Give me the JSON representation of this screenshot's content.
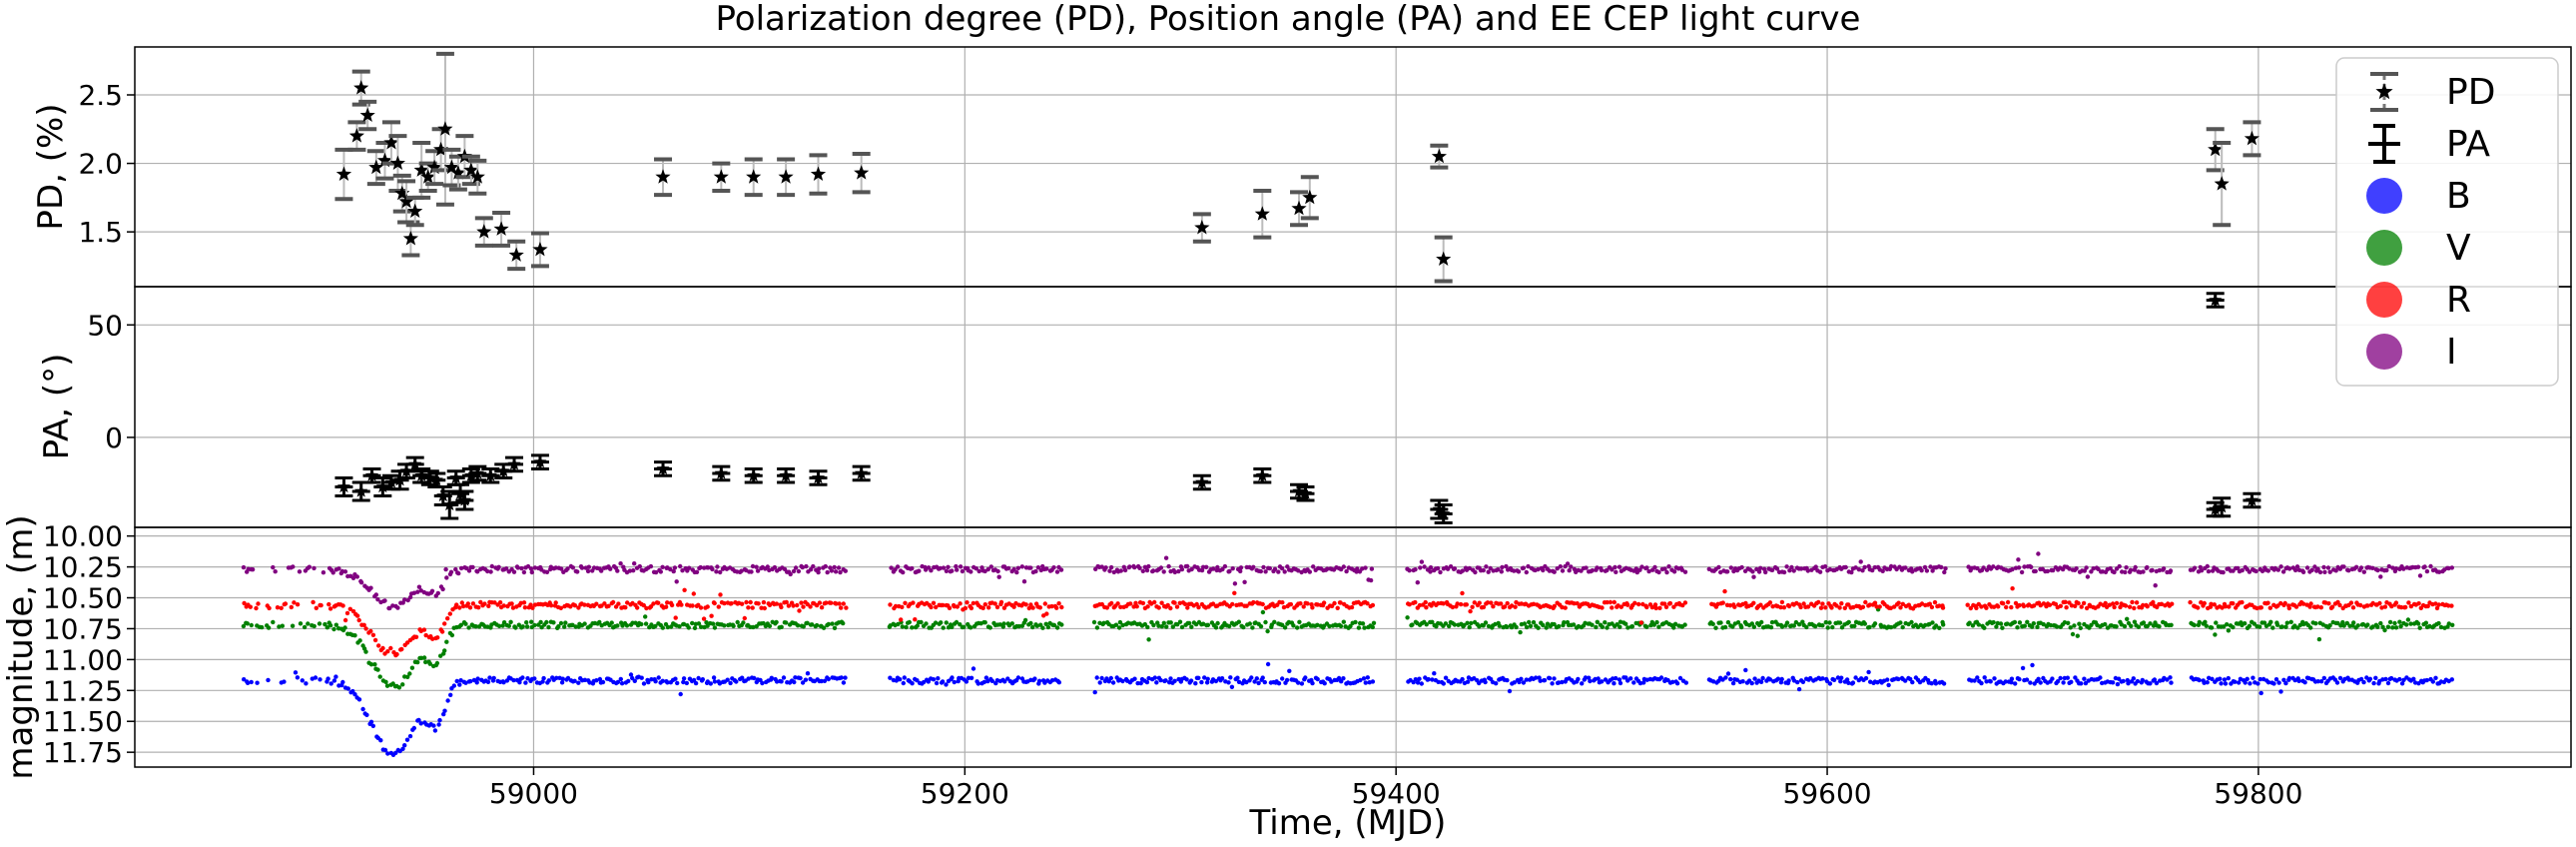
{
  "chart_data": {
    "type": "scatter",
    "title": "Polarization degree (PD), Position angle (PA) and EE CEP light curve",
    "xlabel": "Time, (MJD)",
    "xlim": [
      58815,
      59945
    ],
    "x_ticks": [
      "59000",
      "59200",
      "59400",
      "59600",
      "59800"
    ],
    "grid": true,
    "legend": {
      "placement": "top-right",
      "entries": [
        {
          "label": "PD",
          "marker": "star-errorbar-dashed",
          "color": "#555555"
        },
        {
          "label": "PA",
          "marker": "errorbar-solid",
          "color": "#000000"
        },
        {
          "label": "B",
          "marker": "circle",
          "color": "#0000ff"
        },
        {
          "label": "V",
          "marker": "circle",
          "color": "#008000"
        },
        {
          "label": "R",
          "marker": "circle",
          "color": "#ff0000"
        },
        {
          "label": "I",
          "marker": "circle",
          "color": "#800080"
        }
      ]
    },
    "panels": {
      "pd": {
        "ylabel": "PD, (%)",
        "ylim": [
          1.1,
          2.85
        ],
        "y_ticks": [
          "1.5",
          "2.0",
          "2.5"
        ],
        "points": [
          [
            58912,
            1.92,
            0.18
          ],
          [
            58918,
            2.2,
            0.1
          ],
          [
            58920,
            2.55,
            0.12
          ],
          [
            58923,
            2.35,
            0.1
          ],
          [
            58927,
            1.97,
            0.12
          ],
          [
            58931,
            2.02,
            0.13
          ],
          [
            58934,
            2.15,
            0.15
          ],
          [
            58937,
            2.0,
            0.2
          ],
          [
            58939,
            1.78,
            0.13
          ],
          [
            58941,
            1.72,
            0.15
          ],
          [
            58943,
            1.45,
            0.12
          ],
          [
            58945,
            1.65,
            0.1
          ],
          [
            58948,
            1.95,
            0.2
          ],
          [
            58951,
            1.9,
            0.1
          ],
          [
            58954,
            1.97,
            0.12
          ],
          [
            58957,
            2.1,
            0.15
          ],
          [
            58959,
            2.25,
            0.55
          ],
          [
            58962,
            1.97,
            0.13
          ],
          [
            58965,
            1.93,
            0.12
          ],
          [
            58968,
            2.05,
            0.15
          ],
          [
            58971,
            1.95,
            0.1
          ],
          [
            58974,
            1.9,
            0.12
          ],
          [
            58977,
            1.5,
            0.1
          ],
          [
            58985,
            1.52,
            0.12
          ],
          [
            58992,
            1.33,
            0.1
          ],
          [
            59003,
            1.37,
            0.12
          ],
          [
            59060,
            1.9,
            0.13
          ],
          [
            59087,
            1.9,
            0.1
          ],
          [
            59102,
            1.9,
            0.13
          ],
          [
            59117,
            1.9,
            0.13
          ],
          [
            59132,
            1.92,
            0.14
          ],
          [
            59152,
            1.93,
            0.14
          ],
          [
            59310,
            1.53,
            0.1
          ],
          [
            59338,
            1.63,
            0.17
          ],
          [
            59355,
            1.67,
            0.12
          ],
          [
            59360,
            1.75,
            0.15
          ],
          [
            59420,
            2.05,
            0.08
          ],
          [
            59422,
            1.3,
            0.16
          ],
          [
            59780,
            2.1,
            0.15
          ],
          [
            59783,
            1.85,
            0.3
          ],
          [
            59797,
            2.18,
            0.12
          ]
        ]
      },
      "pa": {
        "ylabel": "PA, (°)",
        "ylim": [
          -40,
          67
        ],
        "y_ticks": [
          "0",
          "50"
        ],
        "points": [
          [
            58912,
            -22,
            4
          ],
          [
            58920,
            -24,
            4
          ],
          [
            58925,
            -17,
            3
          ],
          [
            58930,
            -22,
            4
          ],
          [
            58934,
            -20,
            3
          ],
          [
            58938,
            -19,
            4
          ],
          [
            58941,
            -15,
            3
          ],
          [
            58945,
            -12,
            3
          ],
          [
            58948,
            -17,
            3
          ],
          [
            58952,
            -18,
            3
          ],
          [
            58955,
            -19,
            3
          ],
          [
            58958,
            -26,
            4
          ],
          [
            58961,
            -30,
            6
          ],
          [
            58964,
            -18,
            3
          ],
          [
            58966,
            -25,
            4
          ],
          [
            58968,
            -28,
            4
          ],
          [
            58971,
            -17,
            3
          ],
          [
            58974,
            -16,
            3
          ],
          [
            58980,
            -17,
            3
          ],
          [
            58986,
            -15,
            3
          ],
          [
            58991,
            -12,
            3
          ],
          [
            59003,
            -11,
            3
          ],
          [
            59060,
            -14,
            3
          ],
          [
            59087,
            -16,
            3
          ],
          [
            59102,
            -17,
            3
          ],
          [
            59117,
            -17,
            3
          ],
          [
            59132,
            -18,
            3
          ],
          [
            59152,
            -16,
            3
          ],
          [
            59310,
            -20,
            3
          ],
          [
            59338,
            -17,
            3
          ],
          [
            59355,
            -24,
            3
          ],
          [
            59358,
            -25,
            3
          ],
          [
            59420,
            -32,
            4
          ],
          [
            59422,
            -34,
            4
          ],
          [
            59780,
            61,
            3
          ],
          [
            59780,
            -32,
            3
          ],
          [
            59783,
            -31,
            4
          ],
          [
            59797,
            -28,
            3
          ]
        ]
      },
      "mag": {
        "ylabel": "magnitude, (m)",
        "ylim": [
          11.87,
          9.93
        ],
        "y_ticks": [
          "10.00",
          "10.25",
          "10.50",
          "10.75",
          "11.00",
          "11.25",
          "11.50",
          "11.75"
        ],
        "bands": [
          {
            "name": "B",
            "base": 11.17,
            "dip": 0.6
          },
          {
            "name": "V",
            "base": 10.72,
            "dip": 0.5
          },
          {
            "name": "R",
            "base": 10.56,
            "dip": 0.4
          },
          {
            "name": "I",
            "base": 10.27,
            "dip": 0.3
          }
        ],
        "time_range": [
          58865,
          59890
        ]
      }
    }
  }
}
